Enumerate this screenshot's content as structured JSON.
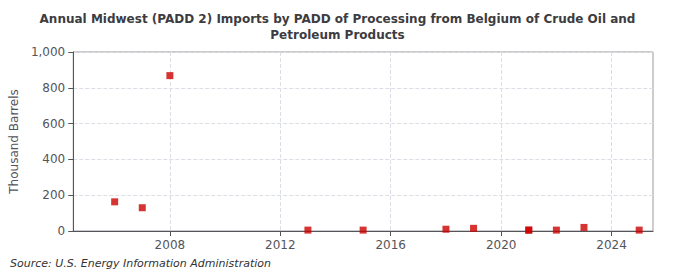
{
  "chart_data": {
    "type": "scatter",
    "title": "Annual Midwest (PADD 2) Imports by PADD of Processing from Belgium of Crude Oil and\nPetroleum Products",
    "ylabel": "Thousand Barrels",
    "annotations": [
      "Source: U.S. Energy Information Administration"
    ],
    "x": [
      2006,
      2007,
      2008,
      2013,
      2015,
      2018,
      2019,
      2021,
      2021,
      2022,
      2023,
      2025
    ],
    "values": [
      163,
      130,
      868,
      5,
      5,
      10,
      15,
      5,
      5,
      5,
      20,
      5
    ],
    "color": "#cc0000",
    "marker": "square",
    "xlim": [
      2004.5,
      2025.5
    ],
    "xticks": [
      2008,
      2012,
      2016,
      2020,
      2024
    ],
    "ylim": [
      0,
      1000
    ],
    "yticks": [
      0,
      200,
      400,
      600,
      800,
      {
        "value": 1000,
        "label": "1,000"
      }
    ],
    "grid": true
  }
}
